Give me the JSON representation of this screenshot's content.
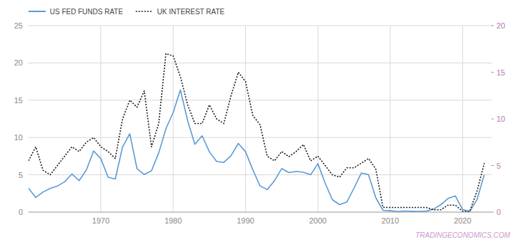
{
  "chart_data": {
    "type": "line",
    "x": [
      1960,
      1961,
      1962,
      1963,
      1964,
      1965,
      1966,
      1967,
      1968,
      1969,
      1970,
      1971,
      1972,
      1973,
      1974,
      1975,
      1976,
      1977,
      1978,
      1979,
      1980,
      1981,
      1982,
      1983,
      1984,
      1985,
      1986,
      1987,
      1988,
      1989,
      1990,
      1991,
      1992,
      1993,
      1994,
      1995,
      1996,
      1997,
      1998,
      1999,
      2000,
      2001,
      2002,
      2003,
      2004,
      2005,
      2006,
      2007,
      2008,
      2009,
      2010,
      2011,
      2012,
      2013,
      2014,
      2015,
      2016,
      2017,
      2018,
      2019,
      2020,
      2021,
      2022,
      2023
    ],
    "series": [
      {
        "name": "US FED FUNDS RATE",
        "color": "#5B9BD5",
        "line_style": "solid",
        "values": [
          3.2,
          1.96,
          2.68,
          3.18,
          3.5,
          4.07,
          5.11,
          4.22,
          5.66,
          8.2,
          7.17,
          4.67,
          4.44,
          8.73,
          10.51,
          5.82,
          5.05,
          5.54,
          7.93,
          11.19,
          13.36,
          16.38,
          12.24,
          9.09,
          10.23,
          8.1,
          6.8,
          6.66,
          7.57,
          9.21,
          8.1,
          5.69,
          3.52,
          3.02,
          4.21,
          5.84,
          5.3,
          5.46,
          5.35,
          5.0,
          6.5,
          3.89,
          1.67,
          1.0,
          1.35,
          3.22,
          5.24,
          5.02,
          1.93,
          0.24,
          0.18,
          0.1,
          0.14,
          0.11,
          0.09,
          0.13,
          0.4,
          1.0,
          1.83,
          2.16,
          0.36,
          0.08,
          1.68,
          5.02
        ]
      },
      {
        "name": "UK INTEREST RATE",
        "color": "#1a1a1a",
        "line_style": "dotted",
        "axis": "y2",
        "values": [
          5.5,
          7.0,
          4.5,
          4.0,
          5.0,
          6.0,
          7.0,
          6.5,
          7.5,
          8.0,
          7.0,
          6.5,
          5.75,
          10.0,
          12.0,
          11.25,
          13.0,
          7.0,
          9.5,
          17.0,
          16.75,
          14.5,
          11.5,
          9.5,
          9.5,
          11.5,
          10.0,
          9.5,
          12.5,
          15.0,
          14.0,
          10.38,
          9.38,
          6.0,
          5.5,
          6.5,
          5.94,
          6.5,
          7.25,
          5.5,
          6.0,
          5.0,
          4.0,
          3.75,
          4.75,
          4.75,
          5.25,
          5.75,
          4.63,
          0.5,
          0.5,
          0.5,
          0.5,
          0.5,
          0.5,
          0.5,
          0.25,
          0.25,
          0.75,
          0.75,
          0.1,
          0.1,
          2.25,
          5.25
        ]
      }
    ],
    "xlim": [
      1960,
      2024
    ],
    "xticks": [
      1970,
      1980,
      1990,
      2000,
      2010,
      2020
    ],
    "ylim": [
      0,
      25
    ],
    "yticks": [
      0,
      5,
      10,
      15,
      20,
      25
    ],
    "y2lim": [
      0,
      20
    ],
    "y2ticks": [
      0,
      5,
      10,
      15,
      20
    ],
    "grid": true,
    "legend": "top-left",
    "annotations": [
      "TRADINGECONOMICS.COM"
    ]
  }
}
